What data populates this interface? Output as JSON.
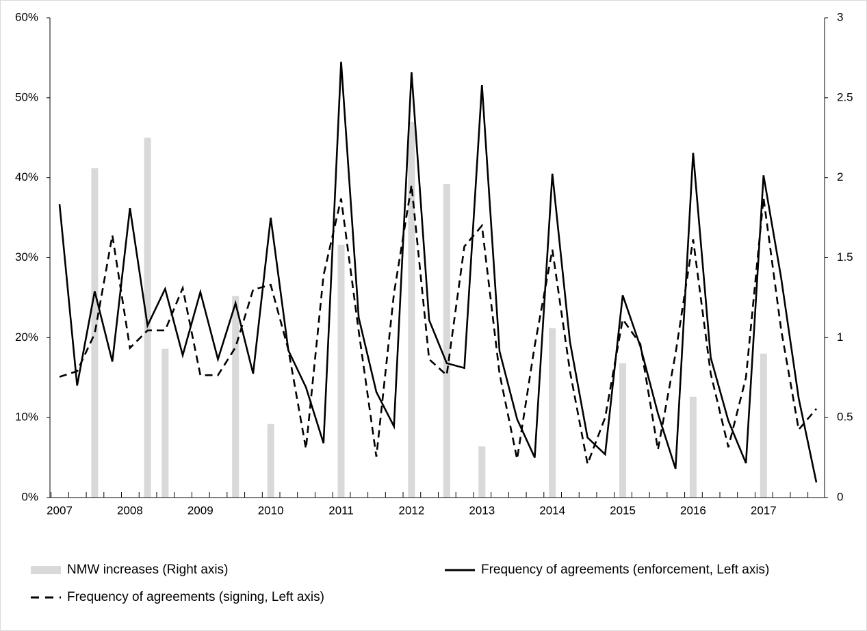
{
  "chart_data": {
    "type": "combo",
    "categories": [
      "2007",
      null,
      null,
      null,
      "2008",
      null,
      null,
      null,
      "2009",
      null,
      null,
      null,
      "2010",
      null,
      null,
      null,
      "2011",
      null,
      null,
      null,
      "2012",
      null,
      null,
      null,
      "2013",
      null,
      null,
      null,
      "2014",
      null,
      null,
      null,
      "2015",
      null,
      null,
      null,
      "2016",
      null,
      null,
      null,
      "2017",
      null,
      null,
      null
    ],
    "series": [
      {
        "name": "NMW increases (Right axis)",
        "kind": "bar",
        "axis": "y2",
        "color": "#d9d9d9",
        "values": [
          null,
          null,
          2.06,
          null,
          null,
          2.25,
          0.93,
          null,
          null,
          null,
          1.26,
          null,
          0.46,
          null,
          null,
          null,
          1.58,
          null,
          null,
          null,
          2.35,
          null,
          1.96,
          null,
          0.32,
          null,
          null,
          null,
          1.06,
          null,
          null,
          null,
          0.84,
          null,
          null,
          null,
          0.63,
          null,
          null,
          null,
          0.9,
          null,
          null,
          null
        ]
      },
      {
        "name": "Frequency of agreements (enforcement, Left axis)",
        "kind": "line",
        "dash": false,
        "color": "#000000",
        "values": [
          36.7,
          14,
          25.8,
          17,
          36.2,
          21.5,
          26.1,
          17.8,
          25.7,
          17.3,
          24.3,
          15.5,
          35,
          18.4,
          13.8,
          6.8,
          54.5,
          22.5,
          13.2,
          8.9,
          53.2,
          22.2,
          16.8,
          16.2,
          51.6,
          18.3,
          9.8,
          5,
          40.5,
          19.5,
          7.5,
          5.4,
          25.3,
          18.9,
          10.5,
          3.6,
          43.1,
          17.5,
          9.6,
          4.3,
          40.3,
          27.5,
          12.4,
          1.9
        ]
      },
      {
        "name": "Frequency of agreements (signing, Left axis)",
        "kind": "line",
        "dash": true,
        "color": "#000000",
        "values": [
          15.1,
          15.8,
          20.5,
          32.8,
          18.7,
          20.9,
          20.9,
          26.2,
          15.3,
          15.3,
          18.8,
          26,
          26.6,
          18.5,
          6.1,
          27.8,
          37.4,
          20.8,
          5.1,
          25.5,
          39.1,
          17.3,
          15.3,
          31.4,
          34,
          15.5,
          4.8,
          19,
          31,
          15.8,
          4.2,
          10,
          22.3,
          19.2,
          6,
          18,
          32.3,
          15.5,
          6.3,
          15,
          37.5,
          21,
          8.5,
          11.1
        ]
      }
    ],
    "ylim": [
      0,
      60
    ],
    "yticks": [
      {
        "value": 0,
        "label": "0%"
      },
      {
        "value": 10,
        "label": "10%"
      },
      {
        "value": 20,
        "label": "20%"
      },
      {
        "value": 30,
        "label": "30%"
      },
      {
        "value": 40,
        "label": "40%"
      },
      {
        "value": 50,
        "label": "50%"
      },
      {
        "value": 60,
        "label": "60%"
      }
    ],
    "y2lim": [
      0,
      3
    ],
    "y2ticks": [
      0,
      0.5,
      1,
      1.5,
      2,
      2.5,
      3
    ]
  }
}
